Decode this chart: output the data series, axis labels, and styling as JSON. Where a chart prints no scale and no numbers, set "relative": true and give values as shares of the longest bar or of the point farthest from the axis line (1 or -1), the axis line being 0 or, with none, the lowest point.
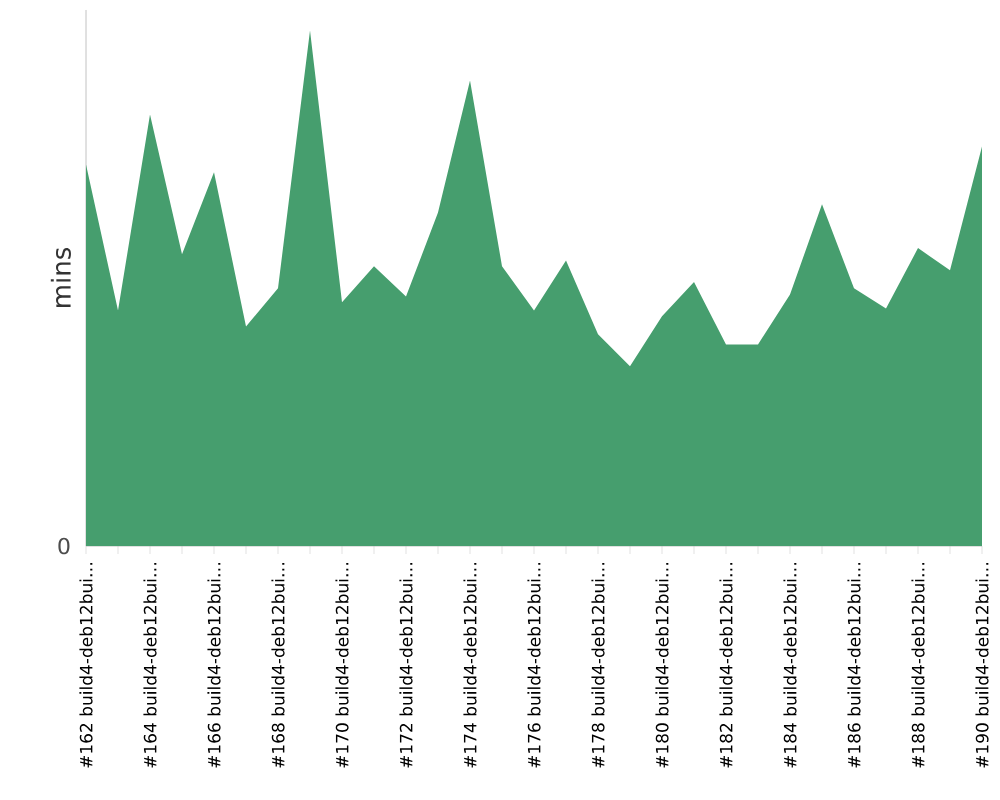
{
  "chart_data": {
    "type": "area",
    "relative": true,
    "ylabel": "mins",
    "annotations": [
      "0"
    ],
    "categories": [
      "#162 build4-deb12bui…",
      null,
      "#164 build4-deb12bui…",
      null,
      "#166 build4-deb12bui…",
      null,
      "#168 build4-deb12bui…",
      null,
      "#170 build4-deb12bui…",
      null,
      "#172 build4-deb12bui…",
      null,
      "#174 build4-deb12bui…",
      null,
      "#176 build4-deb12bui…",
      null,
      "#178 build4-deb12bui…",
      null,
      "#180 build4-deb12bui…",
      null,
      "#182 build4-deb12bui…",
      null,
      "#184 build4-deb12bui…",
      null,
      "#186 build4-deb12bui…",
      null,
      "#188 build4-deb12bui…",
      null,
      "#190 build4-deb12bui…"
    ],
    "series": [
      {
        "color": "#469e6e",
        "values": [
          0.74,
          0.457,
          0.837,
          0.566,
          0.725,
          0.426,
          0.5,
          1,
          0.473,
          0.543,
          0.484,
          0.647,
          0.903,
          0.543,
          0.457,
          0.554,
          0.411,
          0.349,
          0.446,
          0.512,
          0.391,
          0.391,
          0.488,
          0.663,
          0.5,
          0.461,
          0.578,
          0.535,
          0.775
        ]
      }
    ]
  }
}
